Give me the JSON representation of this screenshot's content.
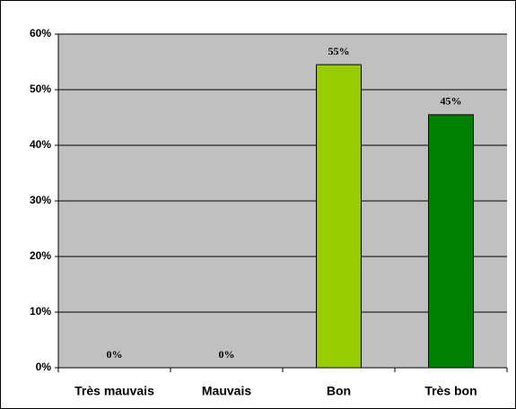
{
  "chart_data": {
    "type": "bar",
    "categories": [
      "Très mauvais",
      "Mauvais",
      "Bon",
      "Très bon"
    ],
    "values": [
      0,
      0,
      54.5,
      45.5
    ],
    "value_labels": [
      "0%",
      "0%",
      "55%",
      "45%"
    ],
    "colors": [
      "#99cc00",
      "#99cc00",
      "#99cc00",
      "#008000"
    ],
    "ylim": [
      0,
      60
    ],
    "yticks": [
      {
        "value": 0,
        "label": "0%"
      },
      {
        "value": 10,
        "label": "10%"
      },
      {
        "value": 20,
        "label": "20%"
      },
      {
        "value": 30,
        "label": "30%"
      },
      {
        "value": 40,
        "label": "40%"
      },
      {
        "value": 50,
        "label": "50%"
      },
      {
        "value": 60,
        "label": "60%"
      }
    ],
    "grid": true
  }
}
